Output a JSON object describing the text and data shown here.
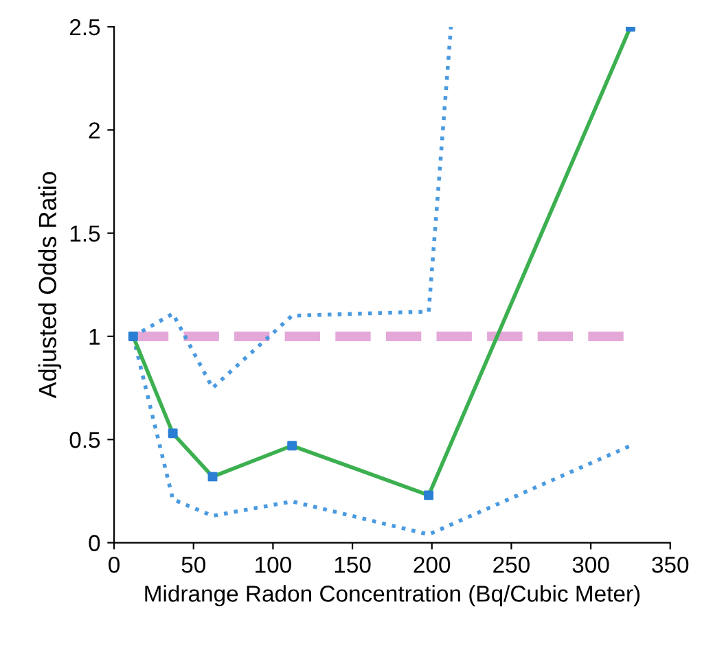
{
  "chart_data": {
    "type": "line",
    "xlabel": "Midrange Radon Concentration (Bq/Cubic Meter)",
    "ylabel": "Adjusted Odds Ratio",
    "xlim": [
      0,
      350
    ],
    "xticks": [
      0,
      50,
      100,
      150,
      200,
      250,
      300,
      350
    ],
    "ylim": [
      0,
      2.5
    ],
    "yticks": [
      0,
      0.5,
      1,
      1.5,
      2,
      2.5
    ],
    "grid": false,
    "legend": false,
    "series": [
      {
        "color": "#e4a8d8",
        "x": [
          12,
          325
        ],
        "values": [
          1,
          1
        ],
        "line_style": "dashed",
        "marker": "none"
      },
      {
        "color": "#4a9ae0",
        "x": [
          12,
          37,
          62,
          112,
          198,
          212
        ],
        "values": [
          1,
          1.11,
          0.75,
          1.1,
          1.12,
          2.5
        ],
        "line_style": "dotted",
        "marker": "none"
      },
      {
        "color": "#4a9ae0",
        "x": [
          12,
          37,
          62,
          112,
          198,
          325
        ],
        "values": [
          1,
          0.21,
          0.13,
          0.2,
          0.04,
          0.47
        ],
        "line_style": "dotted",
        "marker": "none"
      },
      {
        "color": "#3cb050",
        "colors": [
          "#2a7fd4",
          "#2a7fd4",
          "#2a7fd4",
          "#2a7fd4",
          "#2a7fd4",
          "#2a7fd4"
        ],
        "x": [
          12,
          37,
          62,
          112,
          198,
          325
        ],
        "values": [
          1,
          0.53,
          0.32,
          0.47,
          0.23,
          2.5
        ],
        "line_style": "solid",
        "marker": "square"
      }
    ]
  }
}
